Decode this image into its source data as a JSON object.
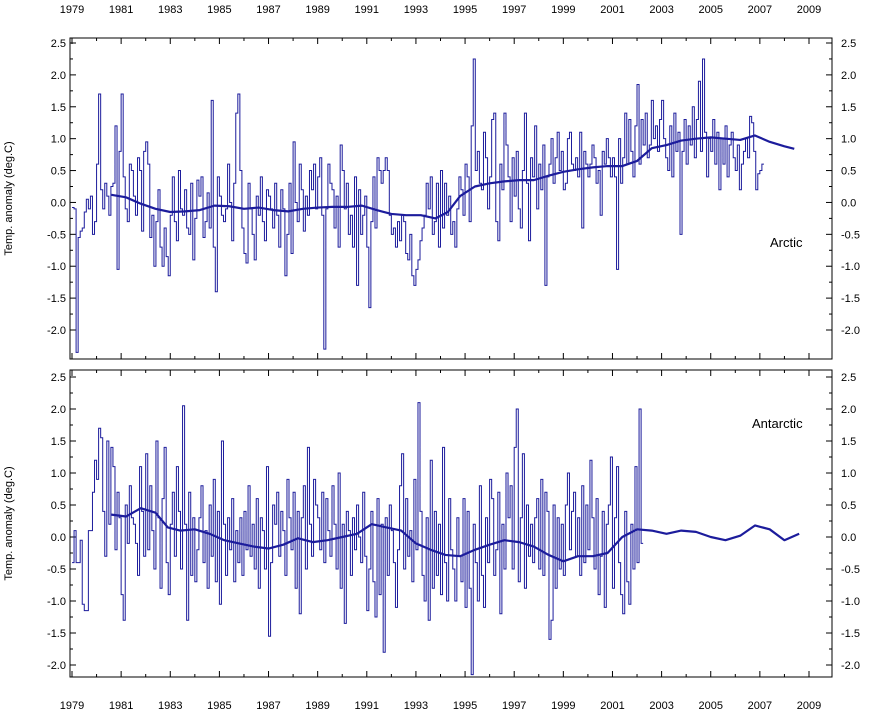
{
  "x_ticks": [
    "1979",
    "1981",
    "1983",
    "1985",
    "1987",
    "1989",
    "1991",
    "1993",
    "1995",
    "1997",
    "1999",
    "2001",
    "2003",
    "2005",
    "2007",
    "2009"
  ],
  "y_ticks": [
    "2.5",
    "2.0",
    "1.5",
    "1.0",
    "0.5",
    "0.0",
    "-0.5",
    "-1.0",
    "-1.5",
    "-2.0"
  ],
  "colors": {
    "series": "#1c1c9c",
    "axis": "#000000"
  },
  "chart_data": [
    {
      "type": "line",
      "panel_label": "Arctic",
      "ylabel": "Temp. anomaly (deg.C)",
      "xlim": [
        1979.0,
        2010.0
      ],
      "ylim": [
        -2.4,
        2.55
      ],
      "x_tick_values": [
        1979,
        1981,
        1983,
        1985,
        1987,
        1989,
        1991,
        1993,
        1995,
        1997,
        1999,
        2001,
        2003,
        2005,
        2007,
        2009
      ],
      "y_tick_values": [
        2.5,
        2.0,
        1.5,
        1.0,
        0.5,
        0.0,
        -0.5,
        -1.0,
        -1.5,
        -2.0
      ],
      "grid": false,
      "series": [
        {
          "style": "step",
          "x_start": 1979.0,
          "x_step": 0.08333,
          "values": [
            -0.08,
            -0.1,
            -2.35,
            -0.55,
            -0.45,
            -0.4,
            -0.15,
            0.05,
            -0.1,
            0.1,
            -0.5,
            -0.3,
            0.6,
            1.7,
            0.2,
            -0.1,
            0.3,
            0.1,
            -0.2,
            0.25,
            0.3,
            1.2,
            -1.05,
            0.8,
            1.7,
            0.4,
            -0.1,
            -0.3,
            0.6,
            0.5,
            0.1,
            -0.2,
            0.7,
            0.5,
            -0.45,
            0.8,
            0.95,
            0.6,
            -0.55,
            -0.2,
            -1.0,
            -0.3,
            0.2,
            -0.7,
            -1.0,
            -0.4,
            -0.85,
            -1.15,
            -0.2,
            0.4,
            -0.3,
            -0.6,
            0.5,
            -0.1,
            -0.2,
            0.2,
            -0.4,
            -0.5,
            0.3,
            -0.9,
            -0.25,
            0.35,
            0.1,
            0.4,
            -0.55,
            -0.3,
            0.15,
            -0.4,
            1.6,
            -0.7,
            -1.4,
            0.4,
            0.1,
            -0.2,
            -0.3,
            -0.1,
            0.6,
            0.0,
            -0.6,
            0.3,
            1.4,
            1.7,
            0.5,
            -0.4,
            -0.8,
            -0.95,
            0.3,
            -0.1,
            -0.5,
            -0.9,
            0.1,
            -0.2,
            0.4,
            -0.3,
            -0.6,
            0.2,
            0.1,
            -0.1,
            -0.4,
            0.3,
            -0.2,
            -0.7,
            0.2,
            -0.1,
            -1.15,
            -0.5,
            0.3,
            -0.8,
            0.95,
            0.0,
            -0.3,
            0.6,
            0.2,
            -0.45,
            0.1,
            -0.2,
            0.5,
            0.2,
            0.6,
            -0.1,
            0.4,
            0.7,
            -0.2,
            -2.3,
            -0.1,
            0.6,
            0.3,
            0.2,
            -0.4,
            0.1,
            -0.7,
            0.9,
            0.5,
            -0.1,
            0.3,
            -0.5,
            -0.2,
            -0.7,
            0.4,
            -1.3,
            0.2,
            -0.5,
            -0.2,
            0.1,
            -0.7,
            -1.65,
            -0.3,
            0.4,
            -0.4,
            0.7,
            0.5,
            0.3,
            0.5,
            0.7,
            0.5,
            -0.2,
            -0.5,
            -0.4,
            -0.7,
            -0.3,
            -0.6,
            -0.2,
            -0.3,
            -0.8,
            -0.9,
            -0.5,
            -1.15,
            -1.3,
            -1.05,
            -0.9,
            -0.6,
            -0.4,
            -0.2,
            0.3,
            -0.1,
            0.4,
            -0.5,
            -0.3,
            0.3,
            -0.7,
            0.5,
            -0.4,
            0.3,
            -0.2,
            0.1,
            -0.5,
            -0.3,
            -0.7,
            -0.1,
            0.4,
            0.2,
            -0.2,
            0.6,
            0.4,
            -0.3,
            1.2,
            2.25,
            0.5,
            0.8,
            0.3,
            0.2,
            1.1,
            0.7,
            -0.1,
            0.4,
            1.3,
            1.4,
            -0.3,
            -0.6,
            0.6,
            0.2,
            1.4,
            0.9,
            0.4,
            -0.3,
            0.7,
            0.1,
            0.8,
            -0.1,
            -0.4,
            0.5,
            1.4,
            0.3,
            -0.6,
            0.7,
            0.4,
            1.2,
            -0.1,
            0.6,
            0.2,
            0.9,
            -1.3,
            0.4,
            0.6,
            1.0,
            0.3,
            0.7,
            1.1,
            0.5,
            0.8,
            0.2,
            0.3,
            1.0,
            1.1,
            0.6,
            0.5,
            0.7,
            0.4,
            1.1,
            -0.4,
            0.8,
            0.6,
            0.4,
            0.6,
            0.9,
            0.7,
            0.3,
            0.5,
            -0.2,
            0.8,
            0.6,
            1.0,
            0.7,
            0.4,
            0.7,
            0.4,
            -1.05,
            1.0,
            0.3,
            0.7,
            1.4,
            0.6,
            1.3,
            0.8,
            0.4,
            1.2,
            1.85,
            0.6,
            1.3,
            0.9,
            1.4,
            0.7,
            0.9,
            1.6,
            1.0,
            1.2,
            0.8,
            1.3,
            1.6,
            1.0,
            0.7,
            0.5,
            1.2,
            0.4,
            1.4,
            0.8,
            1.1,
            -0.5,
            0.8,
            1.3,
            0.6,
            1.2,
            0.9,
            1.5,
            0.7,
            1.3,
            1.9,
            0.8,
            2.25,
            1.1,
            0.4,
            1.0,
            0.8,
            1.3,
            0.6,
            1.1,
            0.2,
            1.0,
            0.6,
            1.2,
            0.4,
            0.9,
            1.1,
            0.7,
            0.5,
            0.9,
            0.2,
            0.6,
            0.8,
            1.0,
            0.7,
            1.35,
            1.25,
            0.8,
            0.2,
            0.45,
            0.5,
            0.6
          ]
        },
        {
          "style": "line",
          "name": "Arctic",
          "smoothing": "running mean",
          "points": [
            [
              1980.6,
              0.12
            ],
            [
              1981.2,
              0.08
            ],
            [
              1981.8,
              -0.02
            ],
            [
              1982.4,
              -0.1
            ],
            [
              1983.0,
              -0.15
            ],
            [
              1983.6,
              -0.14
            ],
            [
              1984.2,
              -0.12
            ],
            [
              1984.8,
              -0.05
            ],
            [
              1985.4,
              -0.06
            ],
            [
              1986.0,
              -0.1
            ],
            [
              1986.6,
              -0.08
            ],
            [
              1987.2,
              -0.12
            ],
            [
              1987.8,
              -0.14
            ],
            [
              1988.4,
              -0.1
            ],
            [
              1989.0,
              -0.08
            ],
            [
              1989.6,
              -0.07
            ],
            [
              1990.2,
              -0.07
            ],
            [
              1990.8,
              -0.05
            ],
            [
              1991.4,
              -0.12
            ],
            [
              1992.0,
              -0.18
            ],
            [
              1992.6,
              -0.2
            ],
            [
              1993.2,
              -0.2
            ],
            [
              1993.8,
              -0.25
            ],
            [
              1994.3,
              -0.15
            ],
            [
              1994.8,
              0.1
            ],
            [
              1995.4,
              0.25
            ],
            [
              1996.0,
              0.3
            ],
            [
              1996.6,
              0.33
            ],
            [
              1997.2,
              0.35
            ],
            [
              1997.8,
              0.35
            ],
            [
              1998.4,
              0.42
            ],
            [
              1999.0,
              0.48
            ],
            [
              1999.6,
              0.52
            ],
            [
              2000.2,
              0.55
            ],
            [
              2000.8,
              0.57
            ],
            [
              2001.4,
              0.57
            ],
            [
              2002.0,
              0.65
            ],
            [
              2002.6,
              0.85
            ],
            [
              2003.2,
              0.9
            ],
            [
              2003.8,
              0.97
            ],
            [
              2004.4,
              1.0
            ],
            [
              2005.0,
              1.02
            ],
            [
              2005.6,
              1.0
            ],
            [
              2006.2,
              0.98
            ],
            [
              2006.8,
              1.05
            ],
            [
              2007.4,
              0.95
            ],
            [
              2008.0,
              0.88
            ],
            [
              2008.4,
              0.84
            ]
          ]
        }
      ]
    },
    {
      "type": "line",
      "panel_label": "Antarctic",
      "ylabel": "Temp. anomaly (deg.C)",
      "xlim": [
        1979.0,
        2010.0
      ],
      "ylim": [
        -2.2,
        2.55
      ],
      "x_tick_values": [
        1979,
        1981,
        1983,
        1985,
        1987,
        1989,
        1991,
        1993,
        1995,
        1997,
        1999,
        2001,
        2003,
        2005,
        2007,
        2009
      ],
      "y_tick_values": [
        2.5,
        2.0,
        1.5,
        1.0,
        0.5,
        0.0,
        -0.5,
        -1.0,
        -1.5,
        -2.0
      ],
      "grid": false,
      "series": [
        {
          "style": "step",
          "x_start": 1979.0,
          "x_step": 0.08333,
          "values": [
            -0.4,
            0.1,
            -0.4,
            -0.4,
            -0.05,
            -1.05,
            -1.15,
            -1.15,
            0.1,
            0.1,
            0.7,
            1.2,
            0.9,
            1.7,
            1.55,
            0.4,
            -0.3,
            1.5,
            0.2,
            1.4,
            1.1,
            -0.2,
            0.7,
            0.3,
            -0.9,
            -1.3,
            0.5,
            -0.1,
            0.8,
            0.3,
            0.2,
            -0.1,
            -0.6,
            1.1,
            0.4,
            -0.3,
            1.3,
            -0.2,
            0.8,
            0.1,
            -0.5,
            1.5,
            0.3,
            -0.8,
            0.6,
            1.4,
            -0.4,
            -0.9,
            0.2,
            0.7,
            -0.3,
            1.1,
            0.4,
            -0.5,
            2.05,
            0.2,
            -1.3,
            0.7,
            -0.6,
            0.3,
            -0.7,
            -0.2,
            0.3,
            0.8,
            -0.4,
            0.1,
            -0.8,
            0.5,
            -0.3,
            0.9,
            -0.7,
            0.4,
            -1.05,
            1.5,
            0.2,
            -0.6,
            0.3,
            -0.2,
            0.6,
            -0.7,
            0.1,
            -0.4,
            0.3,
            -0.6,
            0.4,
            -0.2,
            0.8,
            -0.3,
            0.2,
            -0.5,
            0.6,
            -0.8,
            0.3,
            0.1,
            -0.5,
            1.1,
            -1.55,
            -0.4,
            0.5,
            0.2,
            0.7,
            -0.3,
            0.4,
            0.1,
            -0.6,
            0.9,
            0.3,
            -0.2,
            0.7,
            -0.8,
            0.4,
            -1.2,
            0.3,
            0.8,
            -0.5,
            1.4,
            0.2,
            -0.3,
            0.9,
            0.5,
            0.3,
            -0.2,
            0.7,
            -0.4,
            0.6,
            0.1,
            -0.3,
            0.8,
            0.2,
            -0.5,
            1.0,
            -0.8,
            0.2,
            -1.35,
            0.4,
            0.1,
            -0.6,
            0.3,
            -0.2,
            0.5,
            0.0,
            -0.4,
            0.7,
            -0.3,
            -1.15,
            -0.5,
            0.4,
            -0.7,
            -1.25,
            0.6,
            -0.9,
            0.2,
            -1.8,
            0.3,
            -0.6,
            0.5,
            0.1,
            -0.4,
            -1.1,
            -0.2,
            0.8,
            1.3,
            -0.5,
            0.6,
            -0.3,
            0.1,
            -0.7,
            0.9,
            -0.2,
            2.1,
            0.4,
            -0.6,
            -1.0,
            0.3,
            -1.3,
            1.2,
            -0.8,
            0.4,
            -0.6,
            0.2,
            -0.9,
            1.4,
            -0.4,
            -1.0,
            0.6,
            -0.2,
            -0.5,
            -1.0,
            0.3,
            -0.3,
            -0.7,
            0.6,
            -1.1,
            0.4,
            -0.8,
            -2.15,
            0.2,
            -0.4,
            -1.0,
            0.8,
            -0.6,
            -1.1,
            0.3,
            -0.4,
            0.9,
            0.6,
            -0.6,
            -0.2,
            0.7,
            -1.2,
            0.2,
            -0.5,
            1.0,
            0.3,
            0.8,
            -0.5,
            1.4,
            2.0,
            -0.7,
            0.3,
            1.3,
            -0.8,
            0.5,
            -0.3,
            0.2,
            -0.4,
            0.3,
            0.6,
            -0.5,
            0.9,
            -0.6,
            0.7,
            0.4,
            -1.6,
            -1.3,
            0.5,
            -0.8,
            0.3,
            -0.5,
            0.2,
            -0.6,
            0.5,
            1.0,
            -0.2,
            0.4,
            0.7,
            -0.3,
            0.3,
            -0.6,
            0.8,
            -0.4,
            0.5,
            -0.2,
            1.2,
            0.3,
            -0.5,
            0.6,
            -0.9,
            -0.3,
            0.4,
            -1.1,
            0.2,
            0.5,
            1.25,
            -0.8,
            0.3,
            1.1,
            -0.4,
            -0.9,
            -1.2,
            0.4,
            -0.7,
            -1.05,
            0.2,
            -0.5,
            1.1,
            -0.4,
            2.0,
            -0.1
          ]
        },
        {
          "style": "line",
          "name": "Antarctic",
          "smoothing": "running mean",
          "points": [
            [
              1980.6,
              0.35
            ],
            [
              1981.2,
              0.32
            ],
            [
              1981.8,
              0.45
            ],
            [
              1982.4,
              0.38
            ],
            [
              1982.9,
              0.15
            ],
            [
              1983.4,
              0.1
            ],
            [
              1984.0,
              0.12
            ],
            [
              1984.6,
              0.05
            ],
            [
              1985.2,
              -0.05
            ],
            [
              1985.8,
              -0.1
            ],
            [
              1986.4,
              -0.15
            ],
            [
              1987.0,
              -0.18
            ],
            [
              1987.6,
              -0.12
            ],
            [
              1988.2,
              -0.02
            ],
            [
              1988.8,
              -0.08
            ],
            [
              1989.4,
              -0.05
            ],
            [
              1990.0,
              0.0
            ],
            [
              1990.6,
              0.05
            ],
            [
              1991.2,
              0.2
            ],
            [
              1991.8,
              0.15
            ],
            [
              1992.4,
              0.1
            ],
            [
              1993.0,
              -0.1
            ],
            [
              1993.6,
              -0.2
            ],
            [
              1994.2,
              -0.28
            ],
            [
              1994.8,
              -0.3
            ],
            [
              1995.4,
              -0.2
            ],
            [
              1996.0,
              -0.12
            ],
            [
              1996.6,
              -0.05
            ],
            [
              1997.2,
              -0.08
            ],
            [
              1997.8,
              -0.15
            ],
            [
              1998.4,
              -0.28
            ],
            [
              1999.0,
              -0.38
            ],
            [
              1999.6,
              -0.3
            ],
            [
              2000.2,
              -0.3
            ],
            [
              2000.8,
              -0.25
            ],
            [
              2001.4,
              0.0
            ],
            [
              2002.0,
              0.12
            ],
            [
              2002.6,
              0.1
            ],
            [
              2003.2,
              0.05
            ],
            [
              2003.8,
              0.1
            ],
            [
              2004.4,
              0.08
            ],
            [
              2005.0,
              0.0
            ],
            [
              2005.6,
              -0.05
            ],
            [
              2006.2,
              0.02
            ],
            [
              2006.8,
              0.18
            ],
            [
              2007.4,
              0.12
            ],
            [
              2008.0,
              -0.05
            ],
            [
              2008.6,
              0.05
            ]
          ]
        }
      ]
    }
  ]
}
